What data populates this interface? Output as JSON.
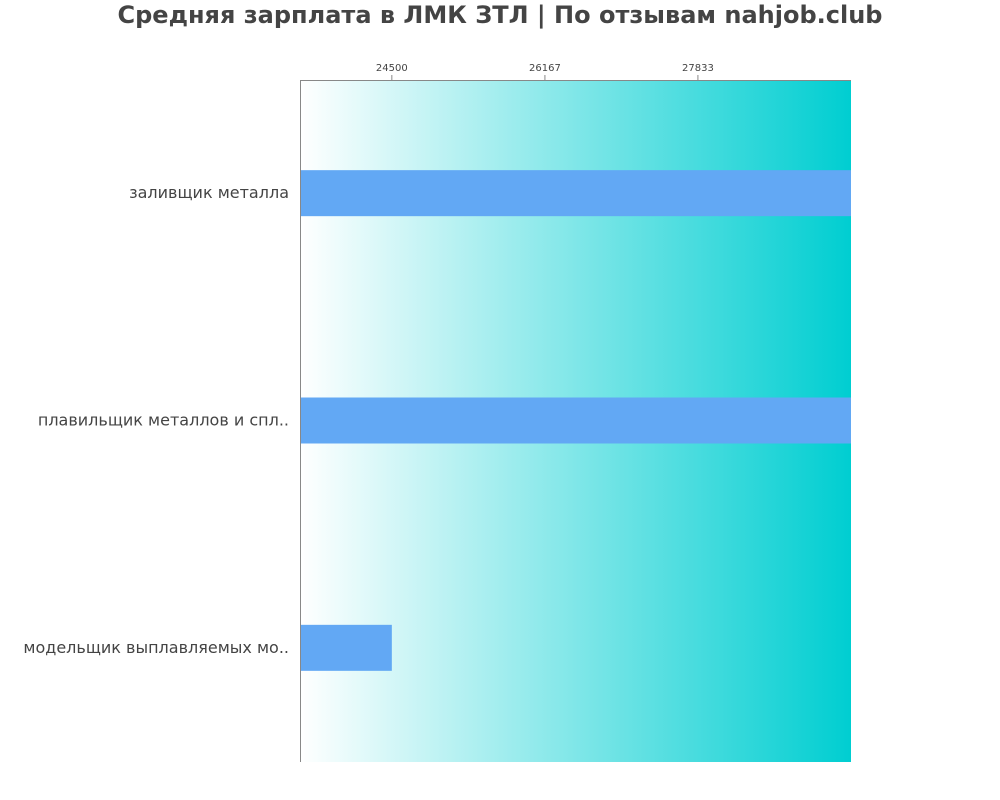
{
  "chart_data": {
    "type": "bar",
    "orientation": "horizontal",
    "title": "Средняя зарплата в ЛМК ЗТЛ | По отзывам nahjob.club",
    "xlabel": "",
    "ylabel": "",
    "categories": [
      "заливщик металла",
      "плавильщик металлов и спл..",
      "модельщик выплавляемых мо.."
    ],
    "values": [
      29500,
      29500,
      24500
    ],
    "xlim": [
      23500,
      29500
    ],
    "xticks": [
      24500,
      26167,
      27833
    ],
    "x_axis_position": "top",
    "grid": false,
    "background": "gradient white-to-cyan",
    "colors": {
      "bar": "#62a8f4",
      "gradient_start": "#ffffff",
      "gradient_end": "#00ced1",
      "axis": "#888888",
      "text": "#444444"
    }
  }
}
